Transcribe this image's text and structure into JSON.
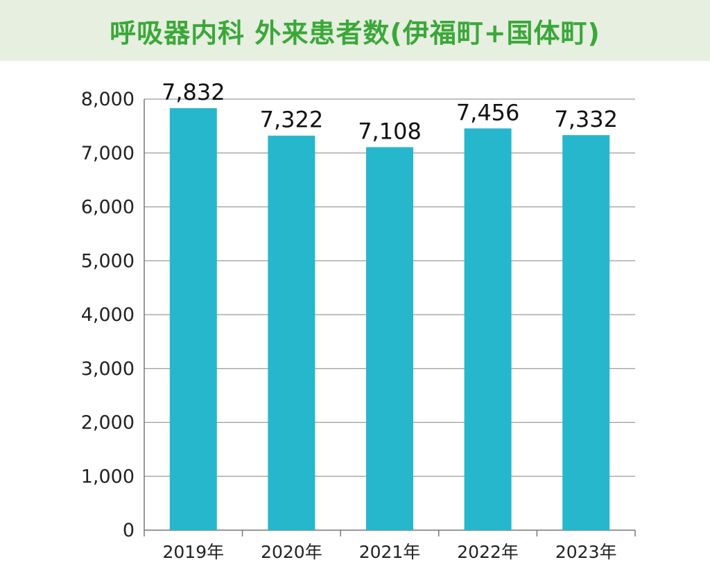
{
  "title": "呼吸器内科 外来患者数(伊福町+国体町)",
  "chart_data": {
    "type": "bar",
    "title": "呼吸器内科 外来患者数(伊福町+国体町)",
    "categories": [
      "2019年",
      "2020年",
      "2021年",
      "2022年",
      "2023年"
    ],
    "values": [
      7832,
      7322,
      7108,
      7456,
      7332
    ],
    "data_labels": [
      "7,832",
      "7,322",
      "7,108",
      "7,456",
      "7,332"
    ],
    "y_ticks": [
      "0",
      "1,000",
      "2,000",
      "3,000",
      "4,000",
      "5,000",
      "6,000",
      "7,000",
      "8,000"
    ],
    "ylim": [
      0,
      8000
    ],
    "grid": true,
    "xlabel": "",
    "ylabel": "",
    "colors": {
      "bar": "#27b7cc",
      "grid": "#9a9a9a",
      "axis": "#777777",
      "title": "#3aa838",
      "title_bg": "#e6efe0"
    }
  }
}
